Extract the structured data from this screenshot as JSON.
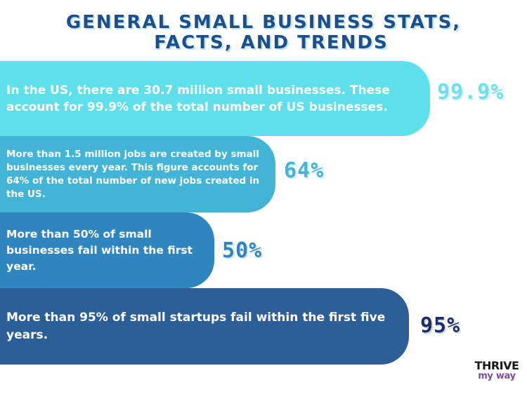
{
  "title": {
    "line1": "GENERAL SMALL BUSINESS STATS,",
    "line2": "FACTS, AND TRENDS"
  },
  "stats": [
    {
      "text": "In the US, there are 30.7 million small businesses. These account for 99.9% of the total number of US businesses.",
      "value": "99.9%",
      "color": "#5fdfea"
    },
    {
      "text": "More than 1.5 million jobs are created by small businesses every year. This figure accounts for 64% of the total number of new jobs created in the US.",
      "value": "64%",
      "color": "#43b4d6"
    },
    {
      "text": "More than 50% of small businesses fail within the first year.",
      "value": "50%",
      "color": "#2f86be"
    },
    {
      "text": "More than 95% of small startups fail within the first five years.",
      "value": "95%",
      "color": "#2c5f97"
    }
  ],
  "logo": {
    "line1": "THRIVE",
    "line2": "my way"
  }
}
